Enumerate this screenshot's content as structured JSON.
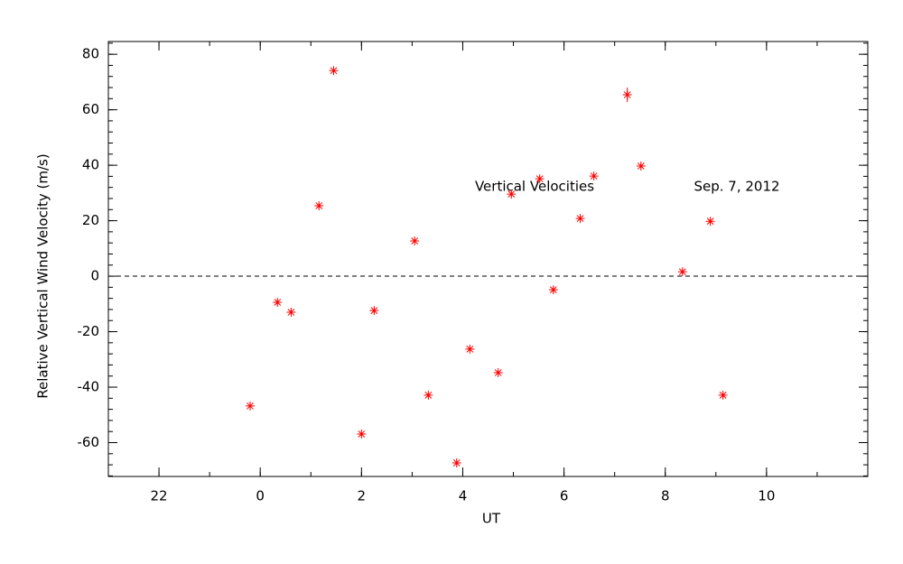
{
  "chart_data": {
    "type": "scatter",
    "xlabel": "UT",
    "ylabel": "Relative Vertical Wind Velocity (m/s)",
    "annotations": [
      "Vertical Velocities",
      "Sep. 7, 2012"
    ],
    "color": "#ff0000",
    "x": [
      -0.2,
      0.34,
      0.61,
      1.16,
      1.45,
      2.0,
      2.25,
      3.05,
      3.32,
      3.88,
      4.14,
      4.7,
      4.96,
      5.52,
      5.79,
      6.32,
      6.59,
      7.25,
      7.52,
      8.34,
      8.89,
      9.14
    ],
    "values": [
      -46.8,
      -9.4,
      -13.0,
      25.4,
      74.1,
      -56.9,
      -12.4,
      12.7,
      -42.9,
      -67.3,
      -26.3,
      -34.8,
      29.6,
      35.1,
      -4.9,
      20.8,
      36.1,
      65.4,
      39.7,
      1.6,
      19.8,
      -42.9
    ],
    "errors": [
      0.8,
      0.8,
      0.8,
      0.8,
      0.8,
      0.8,
      0.8,
      0.8,
      0.8,
      0.8,
      0.8,
      0.8,
      0.8,
      0.8,
      0.8,
      0.8,
      0.8,
      2.6,
      0.8,
      0.8,
      0.8,
      0.8
    ],
    "xlim": [
      -3,
      12
    ],
    "ylim": [
      -72.2,
      84.6
    ],
    "xticks": [
      {
        "value": -2,
        "label": "22"
      },
      0,
      2,
      4,
      6,
      8,
      10
    ],
    "yticks": [
      -60,
      -40,
      -20,
      0,
      20,
      40,
      60,
      80
    ],
    "hline": 0
  }
}
